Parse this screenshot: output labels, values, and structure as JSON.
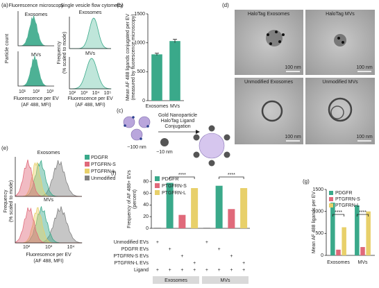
{
  "panel_labels": [
    "(a)",
    "(b)",
    "(c)",
    "(d)",
    "(e)",
    "(f)",
    "(g)"
  ],
  "panel_a": {
    "title_left": "Fluorescence microscopy",
    "title_right": "Single vesicle flow cytometry",
    "row_labels": [
      "Exosomes",
      "MVs"
    ],
    "ylabel_left": "Particle count",
    "ylabel_right": [
      "Frequency",
      "(% scaled to mode)"
    ],
    "xlabel": [
      "Fluorescence per EV",
      "(AF 488, MFI)"
    ],
    "xticks_left": [
      "10¹",
      "10²",
      "10³"
    ],
    "xticks_right": [
      "10²",
      "10³",
      "10⁴",
      "10⁵"
    ]
  },
  "panel_c": {
    "method": [
      "Gold Nanoparticle",
      "HaloTag Ligand",
      "Conjugation"
    ],
    "ev_size": "~100 nm",
    "gold_size": "~10 nm"
  },
  "panel_d": {
    "images": [
      "HaloTag Exosomes",
      "HaloTag MVs",
      "Unmodified Exosomes",
      "Unmodified MVs"
    ],
    "scale_bar": "100 nm"
  },
  "panel_e": {
    "titles": [
      "Exosomes",
      "MVs"
    ],
    "ylabel": [
      "Frequency",
      "(% scaled to mode)"
    ],
    "xlabel": [
      "Fluorescence per EV",
      "(AF 488, MFI)"
    ],
    "xticks": [
      "10²",
      "10³",
      "10⁴"
    ],
    "legend": [
      {
        "name": "PDGFR",
        "color": "#3aa98a"
      },
      {
        "name": "PTGFRN-S",
        "color": "#e0697a"
      },
      {
        "name": "PTGFRN-L",
        "color": "#e8d06a"
      },
      {
        "name": "Unmodified",
        "color": "#808080"
      }
    ]
  },
  "chart_data": [
    {
      "type": "bar",
      "ylabel": [
        "Mean AF 488 ligands conjugated per EV",
        "(measured by fluorescence microscopy)"
      ],
      "categories": [
        "Exosomes",
        "MVs"
      ],
      "values": [
        800,
        1030
      ],
      "errors": [
        20,
        30
      ],
      "color": "#3aa98a",
      "ylim": [
        0,
        1500
      ],
      "yticks": [
        0,
        500,
        1000,
        1500
      ]
    },
    {
      "type": "matrix_bar",
      "ylabel": [
        "Frequency of AF 488+ EVs",
        "(percent)"
      ],
      "values": [
        1,
        78,
        23,
        69,
        1,
        73,
        33,
        69
      ],
      "colors": [
        "#808080",
        "#3aa98a",
        "#e0697a",
        "#e8d06a",
        "#808080",
        "#3aa98a",
        "#e0697a",
        "#e8d06a"
      ],
      "legend": [
        {
          "name": "PDGFR",
          "color": "#3aa98a"
        },
        {
          "name": "PTGFRN-S",
          "color": "#e0697a"
        },
        {
          "name": "PTGFRN-L",
          "color": "#e8d06a"
        }
      ],
      "ylim": [
        0,
        100
      ],
      "yticks": [
        0,
        20,
        40,
        60,
        80
      ],
      "significance": [
        "****",
        "****"
      ],
      "rows": [
        "Unmodified EVs",
        "PDGFR EVs",
        "PTGFRN-S EVs",
        "PTGFRN-L EVs",
        "Ligand"
      ],
      "matrix": [
        [
          "+",
          null,
          null,
          null,
          "+",
          null,
          null,
          null
        ],
        [
          null,
          "+",
          null,
          null,
          null,
          "+",
          null,
          null
        ],
        [
          null,
          null,
          "+",
          null,
          null,
          null,
          "+",
          null
        ],
        [
          null,
          null,
          null,
          "+",
          null,
          null,
          null,
          "+"
        ],
        [
          "+",
          "+",
          "+",
          "+",
          "+",
          "+",
          "+",
          "+"
        ]
      ],
      "groups": [
        "Exosomes",
        "MVs"
      ]
    },
    {
      "type": "grouped_bar",
      "ylabel": "Mean AF 488 ligands per EV",
      "categories": [
        "Exosomes",
        "MVs"
      ],
      "series": [
        {
          "name": "PDGFR",
          "color": "#3aa98a",
          "values": [
            1200,
            1140
          ]
        },
        {
          "name": "PTGFRN-S",
          "color": "#e0697a",
          "values": [
            130,
            190
          ]
        },
        {
          "name": "PTGFRN-L",
          "color": "#e8d06a",
          "values": [
            640,
            1000
          ]
        }
      ],
      "ylim": [
        0,
        1500
      ],
      "yticks": [
        0,
        500,
        1000,
        1500
      ],
      "significance": [
        "****",
        "****"
      ]
    }
  ]
}
